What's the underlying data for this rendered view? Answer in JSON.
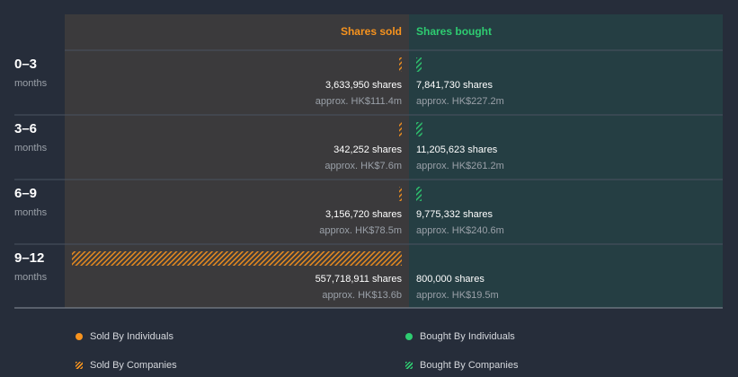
{
  "chart_data": {
    "type": "bar",
    "title": "",
    "xlabel": "",
    "ylabel": "",
    "headers": {
      "sold": "Shares sold",
      "bought": "Shares bought"
    },
    "categories": [
      {
        "range": "0–3",
        "unit": "months"
      },
      {
        "range": "3–6",
        "unit": "months"
      },
      {
        "range": "6–9",
        "unit": "months"
      },
      {
        "range": "9–12",
        "unit": "months"
      }
    ],
    "series": [
      {
        "name": "Shares sold",
        "values": [
          3633950,
          342252,
          3156720,
          557718911
        ],
        "value_labels": [
          "3,633,950 shares",
          "342,252 shares",
          "3,156,720 shares",
          "557,718,911 shares"
        ],
        "approx_labels": [
          "approx. HK$111.4m",
          "approx. HK$7.6m",
          "approx. HK$78.5m",
          "approx. HK$13.6b"
        ],
        "by_individuals": [
          0,
          0,
          0,
          0
        ],
        "by_companies": [
          3633950,
          342252,
          3156720,
          557718911
        ]
      },
      {
        "name": "Shares bought",
        "values": [
          7841730,
          11205623,
          9775332,
          800000
        ],
        "value_labels": [
          "7,841,730 shares",
          "11,205,623 shares",
          "9,775,332 shares",
          "800,000 shares"
        ],
        "approx_labels": [
          "approx. HK$227.2m",
          "approx. HK$261.2m",
          "approx. HK$240.6m",
          "approx. HK$19.5m"
        ],
        "by_individuals": [
          0,
          0,
          0,
          0
        ],
        "by_companies": [
          7841730,
          11205623,
          9775332,
          800000
        ]
      }
    ],
    "max_value": 557718911,
    "legend": [
      {
        "label": "Sold By Individuals",
        "kind": "dot",
        "color": "#f7931e"
      },
      {
        "label": "Bought By Individuals",
        "kind": "dot",
        "color": "#2ecc71"
      },
      {
        "label": "Sold By Companies",
        "kind": "hatch",
        "color": "#f7931e"
      },
      {
        "label": "Bought By Companies",
        "kind": "hatch",
        "color": "#2ecc71"
      }
    ]
  },
  "colors": {
    "sold": "#f7931e",
    "bought": "#2ecc71",
    "sold_panel": "#3b3a3c",
    "bought_panel": "#253e43",
    "bg": "#262d3a",
    "divider": "#4a5260",
    "muted": "#9aa0a8",
    "text": "#ffffff"
  }
}
